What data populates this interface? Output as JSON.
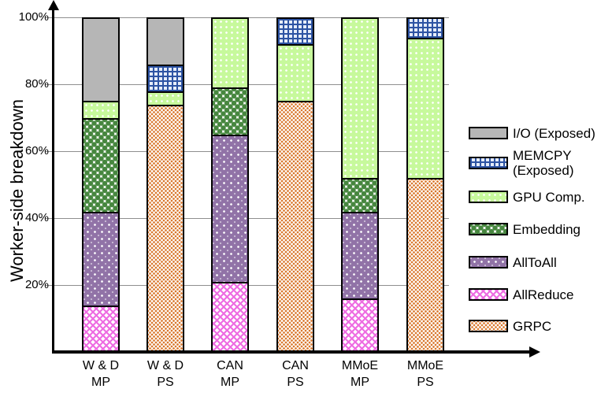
{
  "chart_data": {
    "type": "bar",
    "stacked": true,
    "title": "",
    "xlabel": "",
    "ylabel": "Worker-side breakdown",
    "ylim": [
      0,
      100
    ],
    "grid": true,
    "ytick_values": [
      20,
      40,
      60,
      80,
      100
    ],
    "ytick_labels": [
      "20%",
      "40%",
      "60%",
      "80%",
      "100%"
    ],
    "categories": [
      "W & D MP",
      "W & D PS",
      "CAN MP",
      "CAN PS",
      "MMoE MP",
      "MMoE PS"
    ],
    "category_keys": [
      "wd-mp",
      "wd-ps",
      "can-mp",
      "can-ps",
      "mmoe-mp",
      "mmoe-ps"
    ],
    "category_label_lines": [
      [
        "W & D",
        "MP"
      ],
      [
        "W & D",
        "PS"
      ],
      [
        "CAN",
        "MP"
      ],
      [
        "CAN",
        "PS"
      ],
      [
        "MMoE",
        "MP"
      ],
      [
        "MMoE",
        "PS"
      ]
    ],
    "series": [
      {
        "name": "GRPC",
        "key": "grpc",
        "color": "#d9772c",
        "values": [
          0,
          74,
          0,
          75,
          0,
          52
        ]
      },
      {
        "name": "AllReduce",
        "key": "allreduce",
        "color": "#ee6ce2",
        "values": [
          14,
          0,
          21,
          0,
          16,
          0
        ]
      },
      {
        "name": "AllToAll",
        "key": "alltoall",
        "color": "#9173a7",
        "values": [
          28,
          0,
          44,
          0,
          26,
          0
        ]
      },
      {
        "name": "Embedding",
        "key": "embedding",
        "color": "#47873f",
        "values": [
          28,
          0,
          14,
          0,
          10,
          0
        ]
      },
      {
        "name": "GPU Comp.",
        "key": "gpu-comp",
        "color": "#c7f99c",
        "values": [
          5,
          4,
          21,
          17,
          48,
          42
        ]
      },
      {
        "name": "MEMCPY (Exposed)",
        "key": "memcpy",
        "color": "#2d53a3",
        "values": [
          0,
          8,
          0,
          8,
          0,
          6
        ]
      },
      {
        "name": "I/O (Exposed)",
        "key": "io",
        "color": "#b6b6b6",
        "values": [
          25,
          14,
          0,
          0,
          0,
          0
        ]
      }
    ],
    "legend": {
      "position": "right",
      "entries": [
        {
          "key": "io",
          "label_lines": [
            "I/O (Exposed)"
          ]
        },
        {
          "key": "memcpy",
          "label_lines": [
            "MEMCPY",
            "(Exposed)"
          ]
        },
        {
          "key": "gpu-comp",
          "label_lines": [
            "GPU Comp."
          ]
        },
        {
          "key": "embedding",
          "label_lines": [
            "Embedding"
          ]
        },
        {
          "key": "alltoall",
          "label_lines": [
            "AllToAll"
          ]
        },
        {
          "key": "allreduce",
          "label_lines": [
            "AllReduce"
          ]
        },
        {
          "key": "grpc",
          "label_lines": [
            "GRPC"
          ]
        }
      ]
    }
  }
}
